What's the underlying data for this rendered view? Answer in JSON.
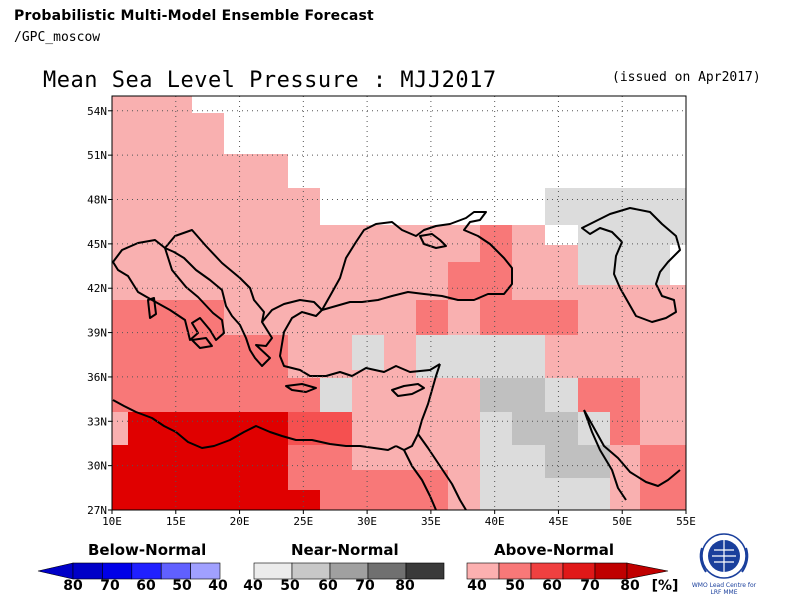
{
  "header": {
    "title": "Probabilistic Multi-Model Ensemble Forecast",
    "subtitle": "/GPC_moscow"
  },
  "map": {
    "title": "Mean Sea Level Pressure : MJJ2017",
    "issued": "(issued on Apr2017)",
    "lon_range": [
      10,
      55
    ],
    "lat_range": [
      27,
      55
    ],
    "lat_ticks": [
      "54N",
      "51N",
      "48N",
      "45N",
      "42N",
      "39N",
      "36N",
      "33N",
      "30N",
      "27N"
    ],
    "lon_ticks": [
      "10E",
      "15E",
      "20E",
      "25E",
      "30E",
      "35E",
      "40E",
      "45E",
      "50E",
      "55E"
    ],
    "gridlines": "dotted",
    "colors": {
      "above_40": "#f9b0b0",
      "above_50": "#f87878",
      "above_60": "#f55050",
      "above_70": "#ee2020",
      "above_80": "#e00000",
      "near_40": "#dcdcdc",
      "near_50": "#c0c0c0",
      "white": "#ffffff"
    }
  },
  "legend": {
    "below": {
      "title": "Below-Normal",
      "labels": [
        "80",
        "70",
        "60",
        "50",
        "40"
      ],
      "colors": [
        "#0000c8",
        "#0000e8",
        "#2020ff",
        "#6060ff",
        "#a0a0ff"
      ]
    },
    "near": {
      "title": "Near-Normal",
      "labels": [
        "40",
        "50",
        "60",
        "70",
        "80"
      ],
      "colors": [
        "#ececec",
        "#c8c8c8",
        "#a0a0a0",
        "#707070",
        "#3a3a3a"
      ]
    },
    "above": {
      "title": "Above-Normal",
      "labels": [
        "40",
        "50",
        "60",
        "70",
        "80"
      ],
      "colors": [
        "#fcb0b0",
        "#f87878",
        "#f04040",
        "#e01818",
        "#c00000"
      ]
    },
    "unit": "[%]"
  },
  "logo": {
    "line1": "WMO Lead Centre for",
    "line2": "LRF MME"
  }
}
